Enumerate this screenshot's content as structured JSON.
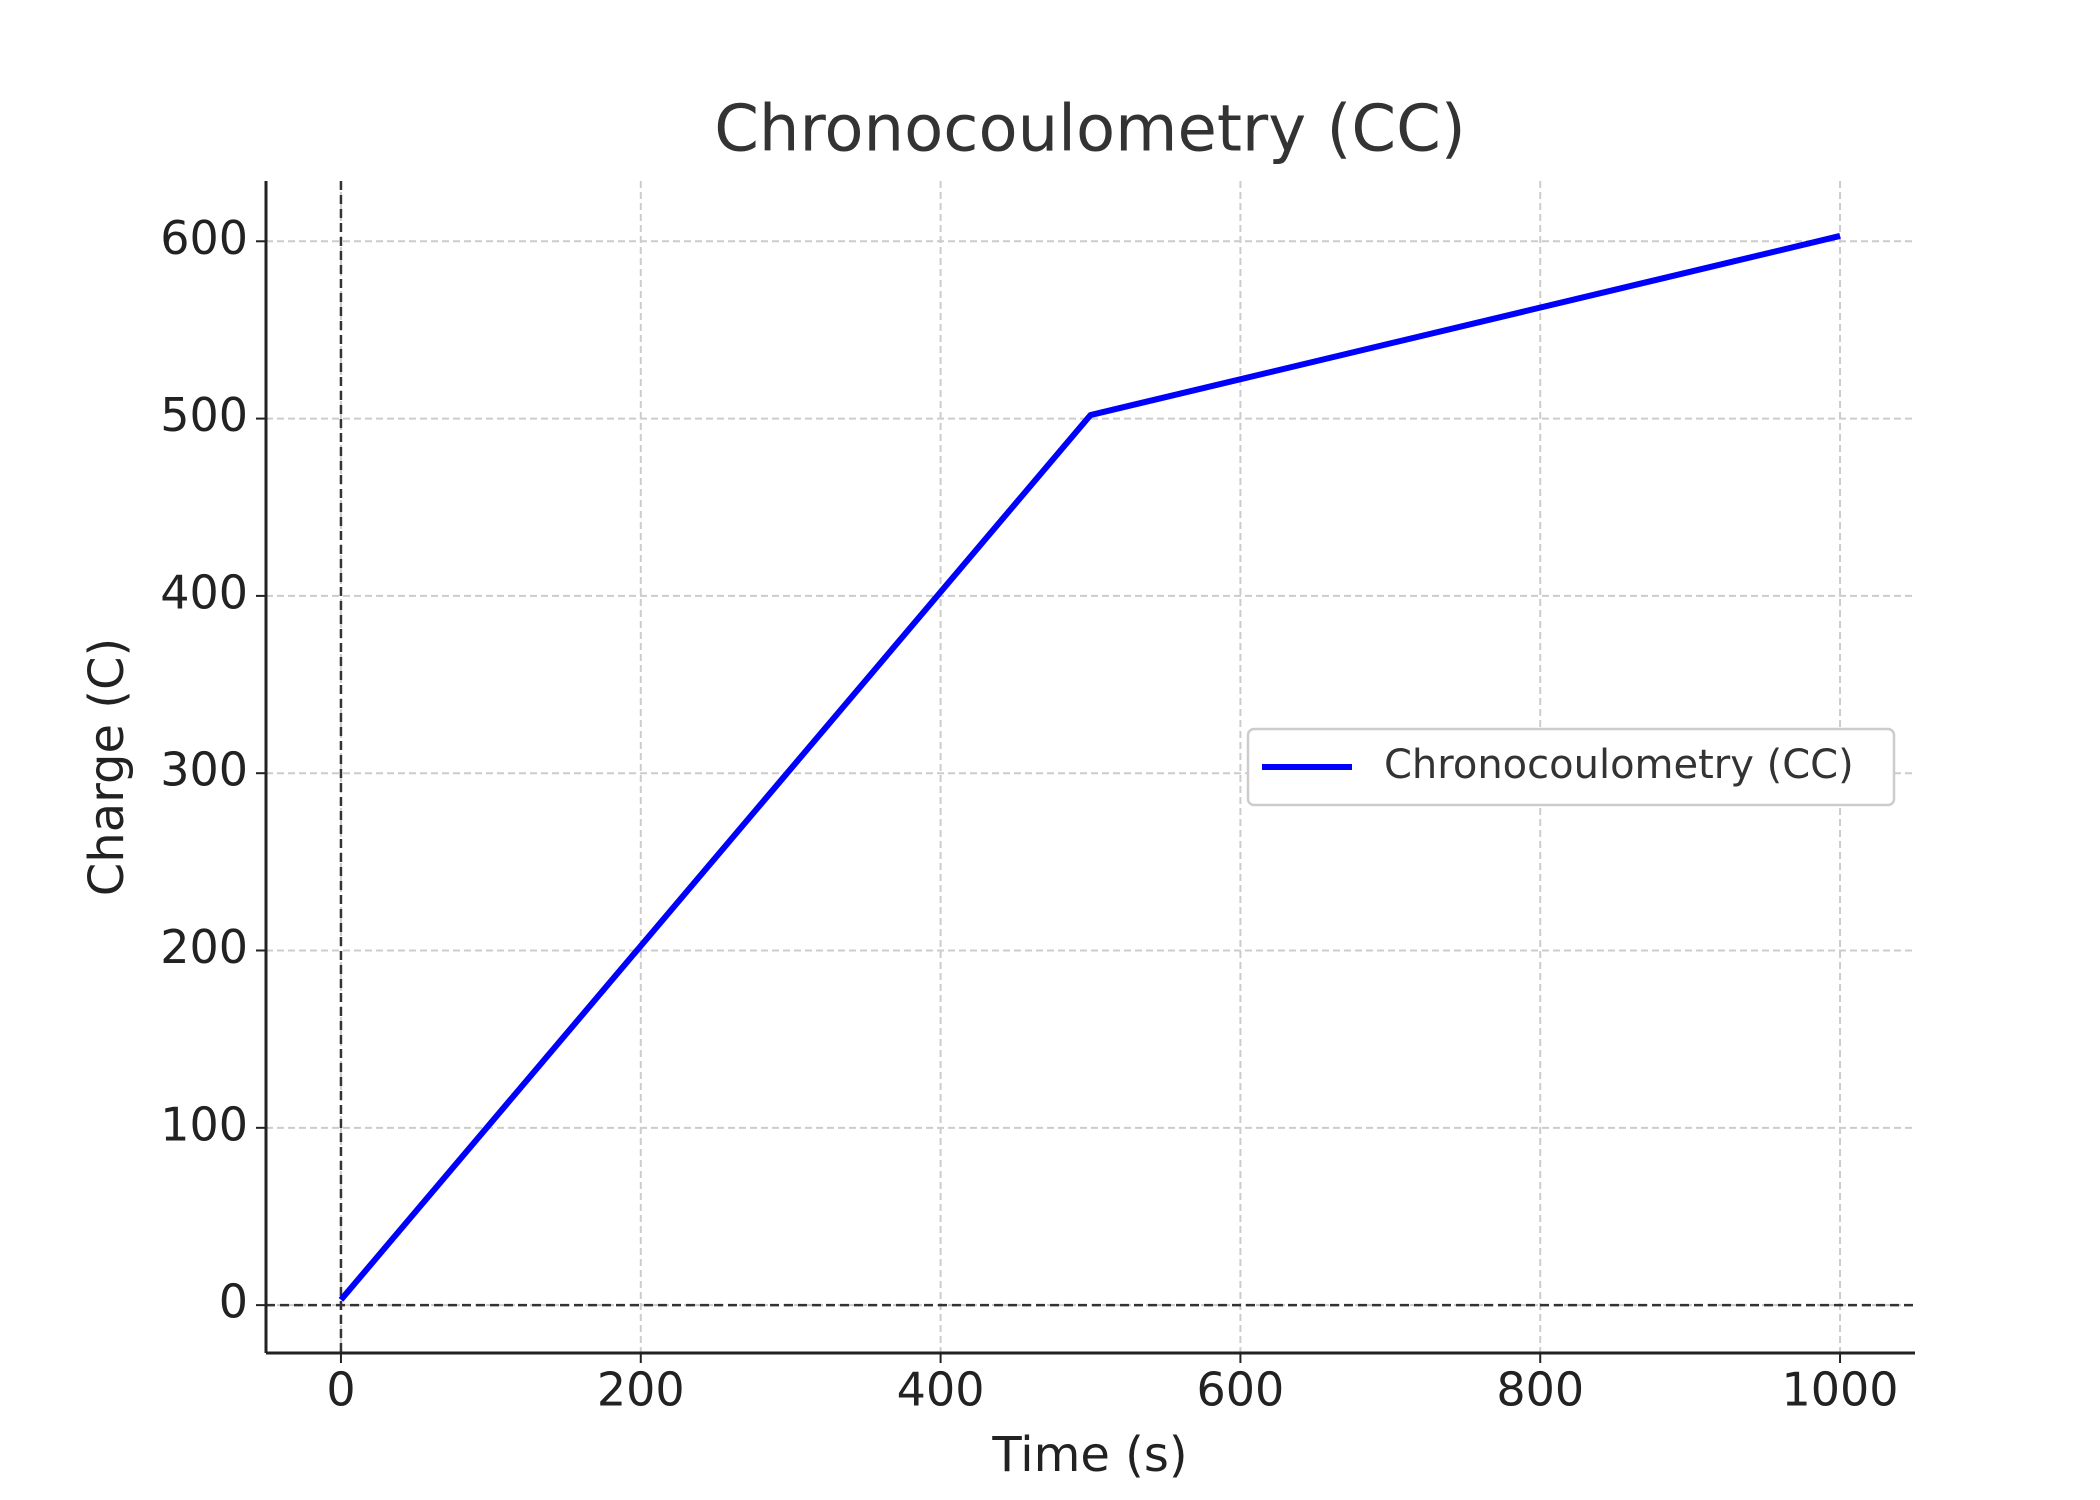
{
  "chart_data": {
    "type": "line",
    "title": "Chronocoulometry (CC)",
    "x_label": "Time (s)",
    "y_label": "Charge (C)",
    "x": [
      0,
      500,
      1000
    ],
    "series": [
      {
        "name": "Chronocoulometry (CC)",
        "color": "#0000ff",
        "values": [
          3,
          502,
          603
        ]
      }
    ],
    "xlim": [
      -50,
      1050
    ],
    "ylim": [
      -27,
      634
    ],
    "xticks": [
      0,
      200,
      400,
      600,
      800,
      1000
    ],
    "yticks": [
      0,
      100,
      200,
      300,
      400,
      500,
      600
    ],
    "grid": true,
    "zero_lines": true,
    "legend": "right"
  }
}
